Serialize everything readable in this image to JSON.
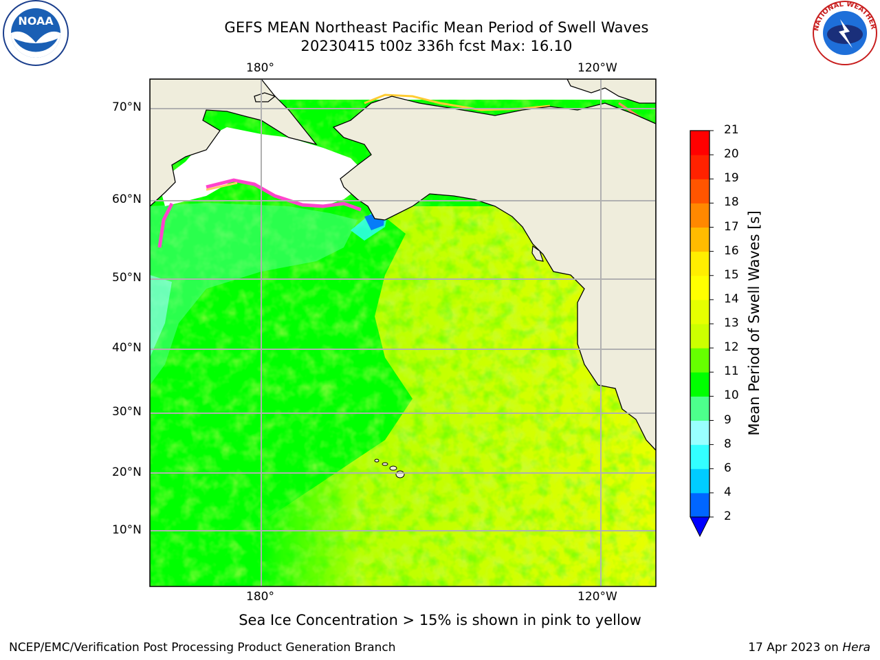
{
  "title_line1": "GEFS MEAN Northeast Pacific Mean Period of Swell Waves",
  "title_line2": "20230415 t00z 336h fcst   Max: 16.10",
  "lon_labels": [
    "180°",
    "120°W"
  ],
  "lat_labels": [
    "70°N",
    "60°N",
    "50°N",
    "40°N",
    "30°N",
    "20°N",
    "10°N"
  ],
  "colorbar": {
    "label": "Mean Period of Swell Waves [s]",
    "ticks": [
      "2",
      "4",
      "6",
      "8",
      "9",
      "10",
      "11",
      "12",
      "13",
      "14",
      "15",
      "16",
      "17",
      "18",
      "19",
      "20",
      "21"
    ],
    "colors": [
      "#0066ff",
      "#00ccff",
      "#33ffff",
      "#99ffff",
      "#4dff8c",
      "#00ff00",
      "#66ff00",
      "#ccff00",
      "#e6ff00",
      "#ffff00",
      "#ffee00",
      "#ffbb00",
      "#ff8800",
      "#ff5500",
      "#ff2200",
      "#ff0000"
    ],
    "under_color": "#0000ff"
  },
  "sea_ice_note": "Sea Ice Concentration > 15% is shown in pink to yellow",
  "footer_left": "NCEP/EMC/Verification Post Processing Product Generation Branch",
  "footer_date": "17 Apr 2023 on ",
  "footer_host": "Hera",
  "logos": {
    "left": "NOAA",
    "right": "NATIONAL WEATHER SERVICE"
  },
  "colors": {
    "land": "#efeddc",
    "ocean_main": "#00ff00",
    "ocean_east": "#ccff00"
  }
}
